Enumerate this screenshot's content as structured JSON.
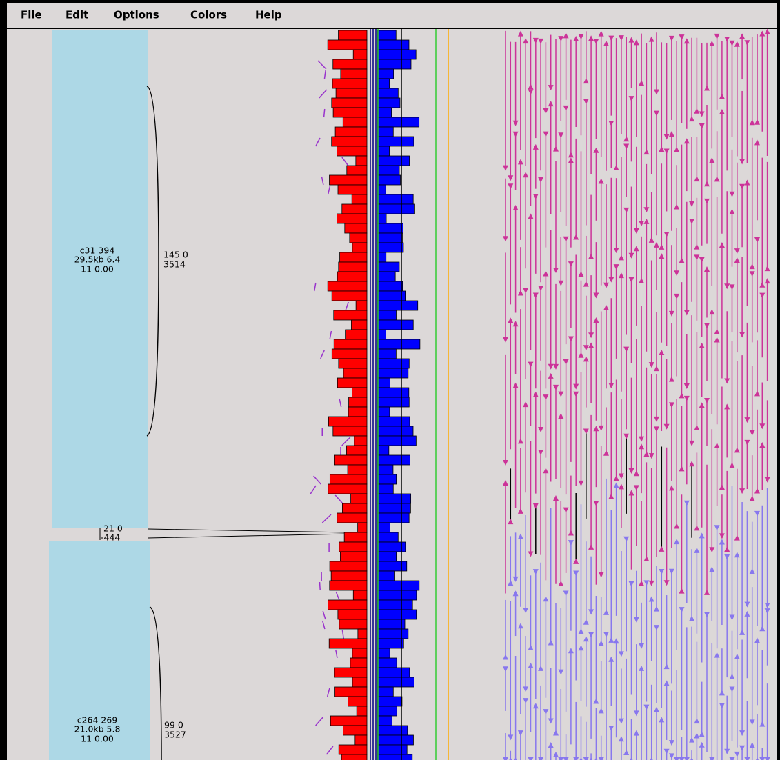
{
  "menu": [
    "File",
    "Edit",
    "Options",
    "Colors",
    "Help"
  ],
  "contigs": [
    {
      "label": [
        "c31 394",
        "29.5kb 6.4",
        "11 0.00"
      ],
      "bracket": [
        "145 0",
        "3514"
      ]
    },
    {
      "label": [
        "c264 269",
        "21.0kb 5.8",
        "11 0.00"
      ],
      "bracket": [
        "99 0",
        "3527"
      ]
    }
  ],
  "gap": [
    "21 0",
    "-444"
  ]
}
